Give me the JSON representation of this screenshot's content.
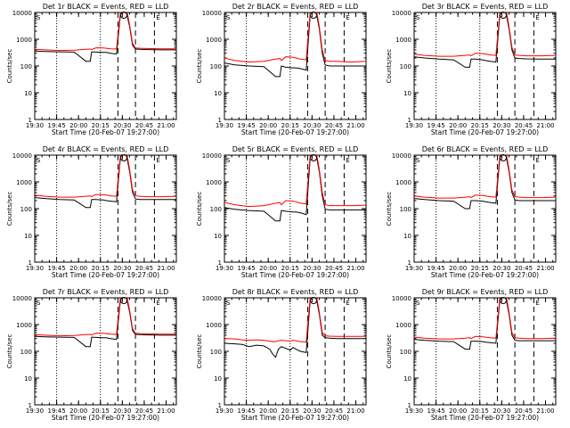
{
  "common": {
    "ylabel": "Counts/sec",
    "xlabel": "Start Time (20-Feb-07 19:27:00)",
    "yticks": [
      "1",
      "10",
      "100",
      "1000",
      "10000"
    ],
    "xticks": [
      "19:30",
      "19:45",
      "20:00",
      "20:15",
      "20:30",
      "20:45",
      "21:00"
    ],
    "colors": {
      "events": "#000000",
      "lld": "#ff0000"
    },
    "marker_labels": [
      "S",
      "E"
    ]
  },
  "chart_data": [
    {
      "type": "line",
      "title": "Det 1r BLACK = Events, RED = LLD",
      "ylim": [
        1,
        10000
      ],
      "xlim_min": [
        3,
        100
      ],
      "yscale": "log",
      "series": [
        {
          "name": "Events",
          "x": [
            3,
            10,
            20,
            30,
            38,
            41,
            42,
            45,
            50,
            52,
            55,
            59,
            62,
            64,
            66,
            68,
            70,
            72,
            75,
            80,
            90,
            100
          ],
          "y": [
            360,
            350,
            340,
            330,
            150,
            150,
            340,
            330,
            320,
            320,
            300,
            280,
            12000,
            12000,
            9000,
            3000,
            600,
            430,
            420,
            410,
            400,
            400
          ]
        },
        {
          "name": "LLD",
          "x": [
            3,
            10,
            20,
            30,
            38,
            41,
            42,
            45,
            50,
            52,
            55,
            59,
            62,
            64,
            66,
            68,
            70,
            72,
            75,
            80,
            90,
            100
          ],
          "y": [
            420,
            400,
            380,
            390,
            420,
            430,
            410,
            480,
            470,
            460,
            440,
            430,
            15000,
            15000,
            12000,
            3500,
            700,
            470,
            460,
            450,
            440,
            440
          ]
        }
      ]
    },
    {
      "type": "line",
      "title": "Det 2r BLACK = Events, RED = LLD",
      "ylim": [
        1,
        10000
      ],
      "xlim_min": [
        3,
        100
      ],
      "yscale": "log",
      "series": [
        {
          "name": "Events",
          "x": [
            3,
            10,
            20,
            30,
            38,
            41,
            42,
            45,
            50,
            52,
            55,
            59,
            62,
            64,
            66,
            68,
            70,
            72,
            75,
            80,
            90,
            100
          ],
          "y": [
            130,
            110,
            100,
            95,
            40,
            40,
            100,
            90,
            85,
            85,
            80,
            70,
            12000,
            12000,
            9000,
            2500,
            300,
            110,
            100,
            100,
            100,
            100
          ]
        },
        {
          "name": "LLD",
          "x": [
            3,
            10,
            20,
            30,
            38,
            41,
            42,
            45,
            50,
            52,
            55,
            59,
            62,
            64,
            66,
            68,
            70,
            72,
            75,
            80,
            90,
            100
          ],
          "y": [
            200,
            160,
            140,
            150,
            180,
            190,
            160,
            220,
            210,
            200,
            180,
            170,
            15000,
            15000,
            12000,
            3000,
            400,
            160,
            150,
            150,
            140,
            150
          ]
        }
      ]
    },
    {
      "type": "line",
      "title": "Det 3r BLACK = Events, RED = LLD",
      "ylim": [
        1,
        10000
      ],
      "xlim_min": [
        3,
        100
      ],
      "yscale": "log",
      "series": [
        {
          "name": "Events",
          "x": [
            3,
            10,
            20,
            30,
            38,
            41,
            42,
            45,
            50,
            52,
            55,
            59,
            62,
            64,
            66,
            68,
            70,
            72,
            75,
            80,
            90,
            100
          ],
          "y": [
            220,
            200,
            180,
            170,
            90,
            90,
            180,
            180,
            170,
            160,
            150,
            140,
            12000,
            12000,
            9000,
            2500,
            400,
            200,
            190,
            185,
            180,
            180
          ]
        },
        {
          "name": "LLD",
          "x": [
            3,
            10,
            20,
            30,
            38,
            41,
            42,
            45,
            50,
            52,
            55,
            59,
            62,
            64,
            66,
            68,
            70,
            72,
            75,
            80,
            90,
            100
          ],
          "y": [
            280,
            250,
            230,
            230,
            250,
            260,
            240,
            300,
            290,
            280,
            260,
            250,
            15000,
            15000,
            12000,
            3000,
            500,
            260,
            250,
            240,
            240,
            250
          ]
        }
      ]
    },
    {
      "type": "line",
      "title": "Det 4r BLACK = Events, RED = LLD",
      "ylim": [
        1,
        10000
      ],
      "xlim_min": [
        3,
        100
      ],
      "yscale": "log",
      "series": [
        {
          "name": "Events",
          "x": [
            3,
            10,
            20,
            30,
            38,
            41,
            42,
            45,
            50,
            52,
            55,
            59,
            62,
            64,
            66,
            68,
            70,
            72,
            75,
            80,
            90,
            100
          ],
          "y": [
            260,
            240,
            220,
            210,
            110,
            110,
            220,
            220,
            210,
            200,
            190,
            180,
            12000,
            12000,
            9000,
            2500,
            400,
            230,
            220,
            220,
            220,
            220
          ]
        },
        {
          "name": "LLD",
          "x": [
            3,
            10,
            20,
            30,
            38,
            41,
            42,
            45,
            50,
            52,
            55,
            59,
            62,
            64,
            66,
            68,
            70,
            72,
            75,
            80,
            90,
            100
          ],
          "y": [
            320,
            290,
            270,
            270,
            290,
            300,
            280,
            340,
            330,
            320,
            300,
            290,
            15000,
            15000,
            12000,
            3000,
            500,
            300,
            290,
            280,
            280,
            290
          ]
        }
      ]
    },
    {
      "type": "line",
      "title": "Det 5r BLACK = Events, RED = LLD",
      "ylim": [
        1,
        10000
      ],
      "xlim_min": [
        3,
        100
      ],
      "yscale": "log",
      "series": [
        {
          "name": "Events",
          "x": [
            3,
            10,
            20,
            30,
            38,
            41,
            42,
            45,
            50,
            52,
            55,
            59,
            62,
            64,
            66,
            68,
            70,
            72,
            75,
            80,
            90,
            100
          ],
          "y": [
            110,
            95,
            85,
            80,
            35,
            35,
            85,
            80,
            75,
            75,
            70,
            60,
            12000,
            12000,
            9000,
            2500,
            300,
            95,
            90,
            90,
            90,
            90
          ]
        },
        {
          "name": "LLD",
          "x": [
            3,
            10,
            20,
            30,
            38,
            41,
            42,
            45,
            50,
            52,
            55,
            59,
            62,
            64,
            66,
            68,
            70,
            72,
            75,
            80,
            90,
            100
          ],
          "y": [
            170,
            140,
            120,
            130,
            160,
            170,
            140,
            200,
            190,
            180,
            160,
            150,
            15000,
            15000,
            12000,
            3000,
            400,
            140,
            130,
            130,
            130,
            135
          ]
        }
      ]
    },
    {
      "type": "line",
      "title": "Det 6r BLACK = Events, RED = LLD",
      "ylim": [
        1,
        10000
      ],
      "xlim_min": [
        3,
        100
      ],
      "yscale": "log",
      "series": [
        {
          "name": "Events",
          "x": [
            3,
            10,
            20,
            30,
            38,
            41,
            42,
            45,
            50,
            52,
            55,
            59,
            62,
            64,
            66,
            68,
            70,
            72,
            75,
            80,
            90,
            100
          ],
          "y": [
            240,
            220,
            200,
            190,
            100,
            100,
            200,
            200,
            190,
            180,
            170,
            160,
            12000,
            12000,
            9000,
            2500,
            400,
            210,
            200,
            200,
            200,
            200
          ]
        },
        {
          "name": "LLD",
          "x": [
            3,
            10,
            20,
            30,
            38,
            41,
            42,
            45,
            50,
            52,
            55,
            59,
            62,
            64,
            66,
            68,
            70,
            72,
            75,
            80,
            90,
            100
          ],
          "y": [
            300,
            270,
            250,
            250,
            270,
            280,
            260,
            320,
            310,
            300,
            280,
            270,
            15000,
            15000,
            12000,
            3000,
            500,
            280,
            270,
            260,
            260,
            270
          ]
        }
      ]
    },
    {
      "type": "line",
      "title": "Det 7r BLACK = Events, RED = LLD",
      "ylim": [
        1,
        10000
      ],
      "xlim_min": [
        3,
        100
      ],
      "yscale": "log",
      "series": [
        {
          "name": "Events",
          "x": [
            3,
            10,
            20,
            30,
            38,
            41,
            42,
            45,
            50,
            52,
            55,
            59,
            62,
            64,
            66,
            68,
            70,
            72,
            75,
            80,
            90,
            100
          ],
          "y": [
            360,
            350,
            340,
            330,
            150,
            150,
            340,
            330,
            320,
            320,
            300,
            280,
            12000,
            12000,
            9000,
            3000,
            600,
            430,
            420,
            410,
            400,
            400
          ]
        },
        {
          "name": "LLD",
          "x": [
            3,
            10,
            20,
            30,
            38,
            41,
            42,
            45,
            50,
            52,
            55,
            59,
            62,
            64,
            66,
            68,
            70,
            72,
            75,
            80,
            90,
            100
          ],
          "y": [
            420,
            400,
            380,
            390,
            420,
            430,
            410,
            480,
            470,
            460,
            440,
            430,
            15000,
            15000,
            12000,
            3500,
            700,
            470,
            460,
            450,
            440,
            440
          ]
        }
      ]
    },
    {
      "type": "line",
      "title": "Det 8r BLACK = Events, RED = LLD",
      "ylim": [
        1,
        10000
      ],
      "xlim_min": [
        3,
        100
      ],
      "yscale": "log",
      "series": [
        {
          "name": "Events",
          "x": [
            3,
            10,
            15,
            20,
            25,
            30,
            34,
            36,
            38,
            40,
            42,
            45,
            48,
            50,
            52,
            55,
            59,
            62,
            64,
            66,
            68,
            70,
            72,
            75,
            80,
            90,
            100
          ],
          "y": [
            200,
            190,
            180,
            150,
            170,
            160,
            120,
            80,
            60,
            120,
            150,
            130,
            110,
            140,
            120,
            100,
            90,
            12000,
            12000,
            9000,
            2500,
            400,
            320,
            310,
            300,
            300,
            300
          ]
        },
        {
          "name": "LLD",
          "x": [
            3,
            10,
            15,
            20,
            25,
            30,
            34,
            36,
            38,
            40,
            42,
            45,
            48,
            50,
            52,
            55,
            59,
            62,
            64,
            66,
            68,
            70,
            72,
            75,
            80,
            90,
            100
          ],
          "y": [
            300,
            290,
            270,
            260,
            270,
            260,
            240,
            230,
            230,
            250,
            260,
            250,
            240,
            260,
            250,
            230,
            220,
            15000,
            15000,
            12000,
            3000,
            500,
            380,
            370,
            360,
            360,
            360
          ]
        }
      ]
    },
    {
      "type": "line",
      "title": "Det 9r BLACK = Events, RED = LLD",
      "ylim": [
        1,
        10000
      ],
      "xlim_min": [
        3,
        100
      ],
      "yscale": "log",
      "series": [
        {
          "name": "Events",
          "x": [
            3,
            10,
            20,
            30,
            38,
            41,
            42,
            45,
            50,
            52,
            55,
            59,
            62,
            64,
            66,
            68,
            70,
            72,
            75,
            80,
            90,
            100
          ],
          "y": [
            280,
            260,
            240,
            230,
            120,
            120,
            240,
            240,
            230,
            220,
            210,
            200,
            12000,
            12000,
            9000,
            2500,
            400,
            260,
            250,
            250,
            250,
            250
          ]
        },
        {
          "name": "LLD",
          "x": [
            3,
            10,
            20,
            30,
            38,
            41,
            42,
            45,
            50,
            52,
            55,
            59,
            62,
            64,
            66,
            68,
            70,
            72,
            75,
            80,
            90,
            100
          ],
          "y": [
            340,
            310,
            290,
            290,
            310,
            320,
            300,
            360,
            350,
            340,
            320,
            310,
            15000,
            15000,
            12000,
            3000,
            500,
            320,
            310,
            300,
            300,
            310
          ]
        }
      ]
    }
  ]
}
